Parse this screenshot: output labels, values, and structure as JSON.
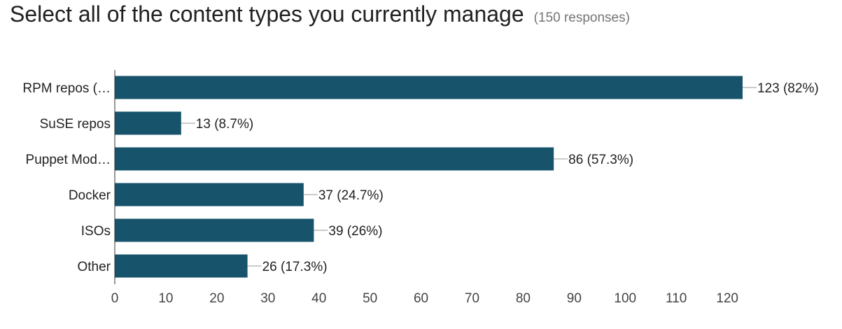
{
  "header": {
    "title": "Select all of the content types you currently manage",
    "responses": "(150 responses)"
  },
  "colors": {
    "bar": "#17546c",
    "axis": "#333333",
    "leader": "#999999"
  },
  "chart_data": {
    "type": "bar",
    "orientation": "horizontal",
    "categories": [
      "RPM repos (…",
      "SuSE repos",
      "Puppet Mod…",
      "Docker",
      "ISOs",
      "Other"
    ],
    "values": [
      123,
      13,
      86,
      37,
      39,
      26
    ],
    "data_labels": [
      "123 (82%)",
      "13 (8.7%)",
      "86 (57.3%)",
      "37 (24.7%)",
      "39 (26%)",
      "26 (17.3%)"
    ],
    "xlim": [
      0,
      123
    ],
    "xticks": [
      0,
      10,
      20,
      30,
      40,
      50,
      60,
      70,
      80,
      90,
      100,
      110,
      120
    ],
    "grid": false,
    "legend": "none"
  }
}
